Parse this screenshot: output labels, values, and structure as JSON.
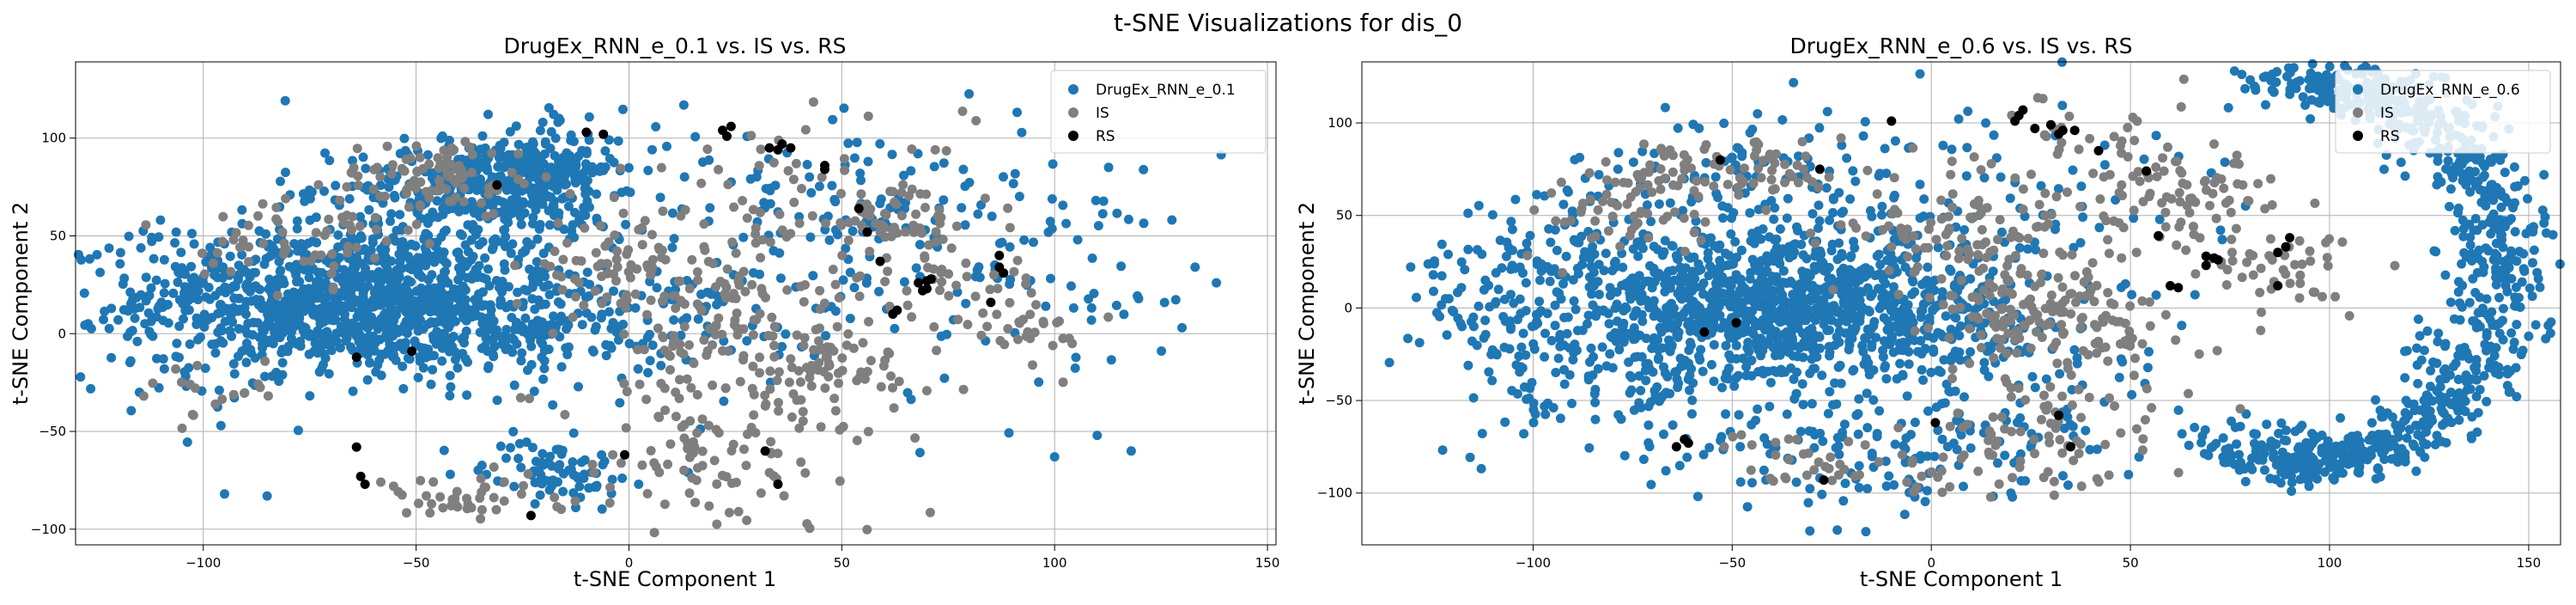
{
  "figure": {
    "suptitle": "t-SNE Visualizations for dis_0"
  },
  "chart_data": [
    {
      "type": "scatter",
      "title": "DrugEx_RNN_e_0.1 vs. IS vs. RS",
      "xlabel": "t-SNE Component 1",
      "ylabel": "t-SNE Component 2",
      "xlim": [
        -130,
        152
      ],
      "ylim": [
        -108,
        139
      ],
      "xticks": [
        -100,
        -50,
        0,
        50,
        100,
        150
      ],
      "yticks": [
        -100,
        -50,
        0,
        50,
        100
      ],
      "xtick_labels": [
        "−100",
        "−50",
        "0",
        "50",
        "100",
        "150"
      ],
      "ytick_labels": [
        "−100",
        "−50",
        "0",
        "50",
        "100"
      ],
      "grid": true,
      "legend_position": "top-right",
      "series": [
        {
          "name": "DrugEx_RNN_e_0.1",
          "color": "#1f77b4",
          "clusters": [
            {
              "center": [
                -65,
                20
              ],
              "spread": [
                25,
                18
              ],
              "count": 950
            },
            {
              "center": [
                -35,
                75
              ],
              "spread": [
                15,
                12
              ],
              "count": 300
            },
            {
              "center": [
                -18,
                85
              ],
              "spread": [
                8,
                10
              ],
              "count": 150
            },
            {
              "center": [
                -40,
                0
              ],
              "spread": [
                30,
                12
              ],
              "count": 300
            },
            {
              "center": [
                -18,
                -70
              ],
              "spread": [
                8,
                8
              ],
              "count": 80
            },
            {
              "center": [
                10,
                45
              ],
              "spread": [
                45,
                40
              ],
              "count": 220
            },
            {
              "center": [
                60,
                55
              ],
              "spread": [
                25,
                25
              ],
              "count": 80
            },
            {
              "center": [
                100,
                30
              ],
              "spread": [
                20,
                35
              ],
              "count": 45
            },
            {
              "center": [
                -105,
                10
              ],
              "spread": [
                8,
                22
              ],
              "count": 50
            }
          ],
          "points": [
            [
              -120,
              7
            ],
            [
              -115,
              -30
            ],
            [
              138,
              26
            ],
            [
              100,
              -63
            ],
            [
              110,
              -52
            ],
            [
              118,
              -60
            ],
            [
              -85,
              -83
            ],
            [
              -95,
              -82
            ],
            [
              133,
              34
            ]
          ]
        },
        {
          "name": "IS",
          "color": "#7f7f7f",
          "clusters": [
            {
              "center": [
                -45,
                80
              ],
              "spread": [
                12,
                10
              ],
              "count": 90
            },
            {
              "center": [
                -75,
                50
              ],
              "spread": [
                12,
                12
              ],
              "count": 60
            },
            {
              "center": [
                -40,
                -85
              ],
              "spread": [
                12,
                6
              ],
              "count": 40
            },
            {
              "center": [
                20,
                -65
              ],
              "spread": [
                20,
                20
              ],
              "count": 90
            },
            {
              "center": [
                20,
                10
              ],
              "spread": [
                15,
                25
              ],
              "count": 150
            },
            {
              "center": [
                45,
                -20
              ],
              "spread": [
                15,
                15
              ],
              "count": 80
            },
            {
              "center": [
                65,
                60
              ],
              "spread": [
                10,
                8
              ],
              "count": 50
            },
            {
              "center": [
                40,
                80
              ],
              "spread": [
                20,
                15
              ],
              "count": 40
            },
            {
              "center": [
                95,
                0
              ],
              "spread": [
                8,
                8
              ],
              "count": 25
            },
            {
              "center": [
                -5,
                35
              ],
              "spread": [
                10,
                10
              ],
              "count": 60
            },
            {
              "center": [
                75,
                25
              ],
              "spread": [
                12,
                12
              ],
              "count": 45
            },
            {
              "center": [
                -100,
                -30
              ],
              "spread": [
                10,
                10
              ],
              "count": 20
            }
          ],
          "points": []
        },
        {
          "name": "RS",
          "color": "#000000",
          "clusters": [],
          "points": [
            [
              -6,
              102
            ],
            [
              22,
              104
            ],
            [
              23,
              101
            ],
            [
              24,
              106
            ],
            [
              33,
              95
            ],
            [
              35,
              94
            ],
            [
              36,
              97
            ],
            [
              38,
              95
            ],
            [
              46,
              86
            ],
            [
              46,
              84
            ],
            [
              54,
              64
            ],
            [
              56,
              52
            ],
            [
              59,
              37
            ],
            [
              68,
              26
            ],
            [
              70,
              27
            ],
            [
              71,
              28
            ],
            [
              69,
              22
            ],
            [
              70,
              23
            ],
            [
              87,
              34
            ],
            [
              88,
              31
            ],
            [
              87,
              40
            ],
            [
              85,
              16
            ],
            [
              62,
              10
            ],
            [
              63,
              12
            ],
            [
              -64,
              -12
            ],
            [
              -51,
              -9
            ],
            [
              -64,
              -58
            ],
            [
              -63,
              -73
            ],
            [
              -62,
              -77
            ],
            [
              -1,
              -62
            ],
            [
              32,
              -60
            ],
            [
              35,
              -77
            ],
            [
              -23,
              -93
            ],
            [
              -31,
              76
            ],
            [
              -10,
              103
            ]
          ]
        }
      ]
    },
    {
      "type": "scatter",
      "title": "DrugEx_RNN_e_0.6 vs. IS vs. RS",
      "xlabel": "t-SNE Component 1",
      "ylabel": "t-SNE Component 2",
      "xlim": [
        -143,
        158
      ],
      "ylim": [
        -128,
        133
      ],
      "xticks": [
        -100,
        -50,
        0,
        50,
        100,
        150
      ],
      "yticks": [
        -100,
        -50,
        0,
        50,
        100
      ],
      "xtick_labels": [
        "−100",
        "−50",
        "0",
        "50",
        "100",
        "150"
      ],
      "ytick_labels": [
        "−100",
        "−50",
        "0",
        "50",
        "100"
      ],
      "grid": true,
      "legend_position": "top-right",
      "series": [
        {
          "name": "DrugEx_RNN_e_0.6",
          "color": "#1f77b4",
          "clusters": [
            {
              "center": [
                -35,
                0
              ],
              "spread": [
                28,
                20
              ],
              "count": 1100
            },
            {
              "center": [
                -80,
                -20
              ],
              "spread": [
                25,
                30
              ],
              "count": 250
            },
            {
              "center": [
                -100,
                30
              ],
              "spread": [
                15,
                20
              ],
              "count": 80
            },
            {
              "center": [
                -40,
                70
              ],
              "spread": [
                25,
                20
              ],
              "count": 120
            },
            {
              "center": [
                -20,
                -80
              ],
              "spread": [
                25,
                15
              ],
              "count": 100
            },
            {
              "center": [
                20,
                -50
              ],
              "spread": [
                25,
                30
              ],
              "count": 100
            },
            {
              "center": [
                10,
                60
              ],
              "spread": [
                30,
                30
              ],
              "count": 80
            }
          ],
          "arc": {
            "center": [
              95,
              20
            ],
            "radius": [
              48,
              102
            ],
            "angle_deg": [
              -115,
              100
            ],
            "jitter": 7,
            "count": 900
          },
          "points": [
            [
              -125,
              9
            ],
            [
              -122,
              5
            ],
            [
              -120,
              -2
            ],
            [
              -118,
              11
            ],
            [
              -115,
              -5
            ],
            [
              -112,
              15
            ]
          ]
        },
        {
          "name": "IS",
          "color": "#7f7f7f",
          "clusters": [
            {
              "center": [
                -50,
                75
              ],
              "spread": [
                15,
                10
              ],
              "count": 80
            },
            {
              "center": [
                -75,
                50
              ],
              "spread": [
                12,
                12
              ],
              "count": 50
            },
            {
              "center": [
                20,
                20
              ],
              "spread": [
                15,
                30
              ],
              "count": 150
            },
            {
              "center": [
                35,
                -10
              ],
              "spread": [
                15,
                15
              ],
              "count": 100
            },
            {
              "center": [
                30,
                -65
              ],
              "spread": [
                15,
                15
              ],
              "count": 60
            },
            {
              "center": [
                -30,
                -80
              ],
              "spread": [
                10,
                8
              ],
              "count": 30
            },
            {
              "center": [
                65,
                60
              ],
              "spread": [
                10,
                10
              ],
              "count": 60
            },
            {
              "center": [
                85,
                25
              ],
              "spread": [
                12,
                12
              ],
              "count": 50
            },
            {
              "center": [
                45,
                90
              ],
              "spread": [
                15,
                12
              ],
              "count": 40
            },
            {
              "center": [
                -10,
                40
              ],
              "spread": [
                12,
                8
              ],
              "count": 30
            },
            {
              "center": [
                10,
                -90
              ],
              "spread": [
                15,
                8
              ],
              "count": 30
            }
          ],
          "points": []
        },
        {
          "name": "RS",
          "color": "#000000",
          "clusters": [],
          "points": [
            [
              -10,
              101
            ],
            [
              21,
              101
            ],
            [
              22,
              104
            ],
            [
              23,
              107
            ],
            [
              30,
              99
            ],
            [
              26,
              97
            ],
            [
              32,
              94
            ],
            [
              33,
              96
            ],
            [
              36,
              96
            ],
            [
              42,
              85
            ],
            [
              54,
              74
            ],
            [
              71,
              27
            ],
            [
              72,
              26
            ],
            [
              69,
              28
            ],
            [
              69,
              23
            ],
            [
              57,
              39
            ],
            [
              60,
              12
            ],
            [
              62,
              11
            ],
            [
              87,
              30
            ],
            [
              89,
              33
            ],
            [
              90,
              38
            ],
            [
              87,
              12
            ],
            [
              -57,
              -13
            ],
            [
              -49,
              -8
            ],
            [
              -62,
              -71
            ],
            [
              -64,
              -75
            ],
            [
              -61,
              -73
            ],
            [
              1,
              -62
            ],
            [
              32,
              -58
            ],
            [
              35,
              -75
            ],
            [
              -27,
              -93
            ],
            [
              -28,
              75
            ],
            [
              -53,
              80
            ]
          ]
        }
      ]
    }
  ]
}
